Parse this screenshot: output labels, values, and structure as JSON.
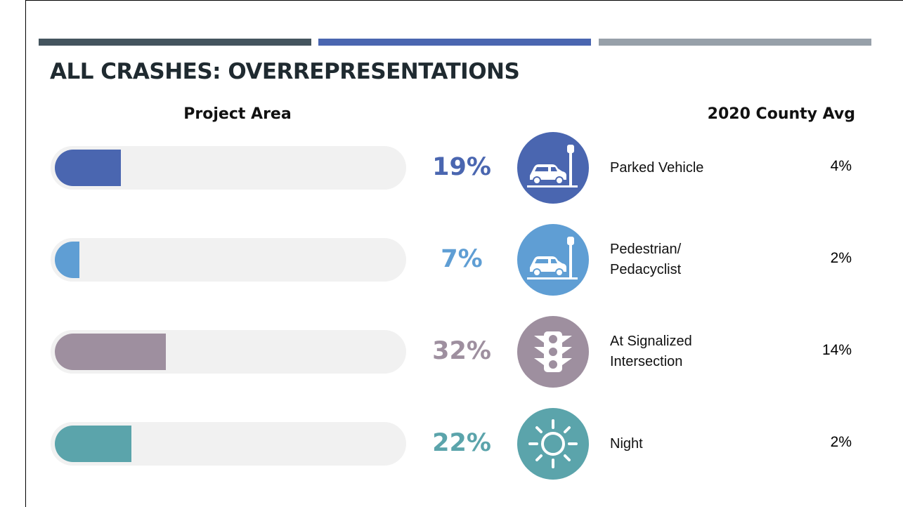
{
  "chart_data": {
    "type": "bar",
    "title": "ALL CRASHES: OVERREPRESENTATIONS",
    "categories": [
      "Parked Vehicle",
      "Pedestrian/ Pedacyclist",
      "At Signalized Intersection",
      "Night"
    ],
    "xlim": [
      0,
      100
    ],
    "series": [
      {
        "name": "Project Area",
        "colors": [
          "#4a66b0",
          "#5f9ed4",
          "#9e8f9f",
          "#5ba4ab"
        ],
        "values": [
          19,
          7,
          32,
          22
        ],
        "value_labels": [
          "19%",
          "7%",
          "32%",
          "22%"
        ]
      },
      {
        "name": "2020 County Avg",
        "color": "#000000",
        "values": [
          4,
          2,
          14,
          2
        ],
        "value_labels": [
          "4%",
          "2%",
          "14%",
          "2%"
        ]
      }
    ]
  }
}
